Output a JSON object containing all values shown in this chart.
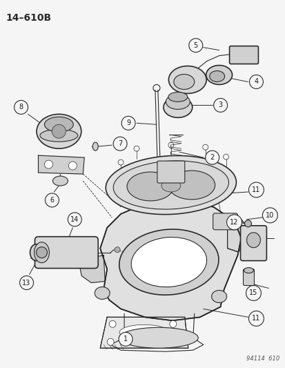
{
  "title": "14–610B",
  "background_color": "#f5f5f5",
  "line_color": "#2a2a2a",
  "label_color": "#1a1a1a",
  "watermark": "94114  610",
  "fig_width": 4.14,
  "fig_height": 5.33,
  "dpi": 100
}
